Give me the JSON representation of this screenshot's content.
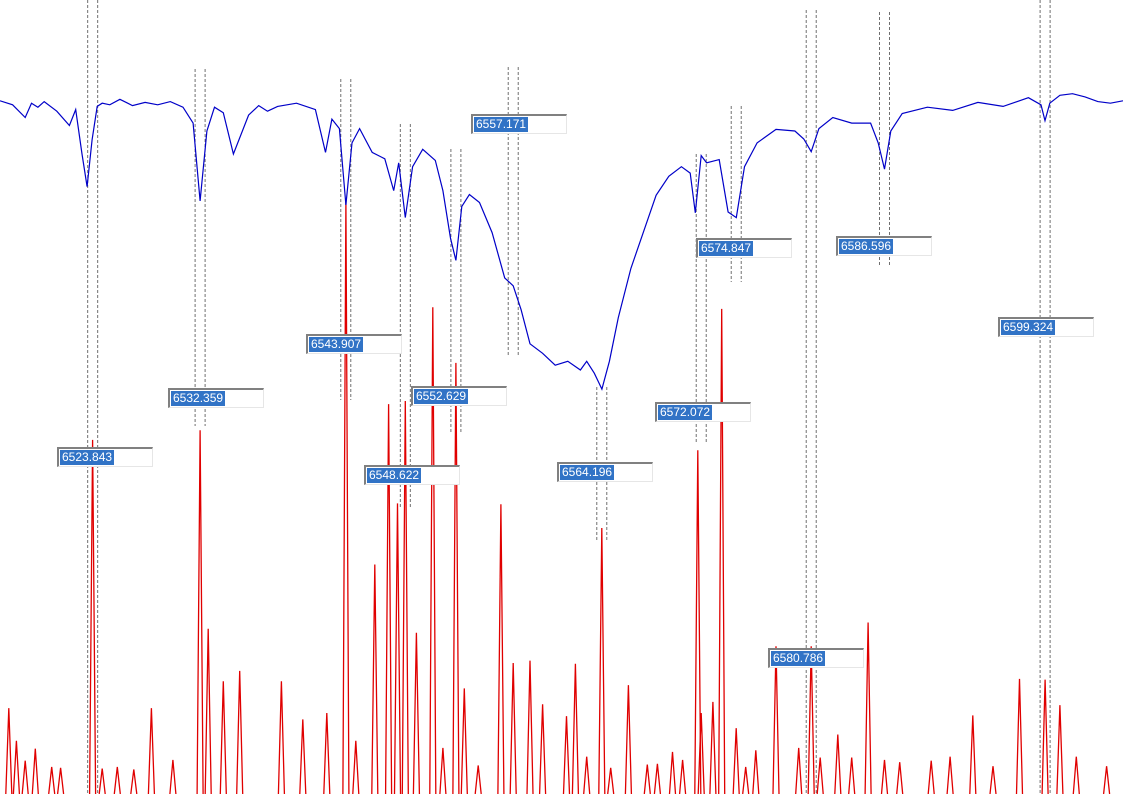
{
  "colors": {
    "observed_spectrum": "#0000c8",
    "synthetic_lines": "#e00000",
    "marker_lines": "#606060",
    "label_selection": "#3173c6"
  },
  "chart_data": {
    "type": "line",
    "title": "",
    "xlabel": "",
    "ylabel": "",
    "xlim": [
      6516.5,
      6605.5
    ],
    "ylim": [
      0,
      1
    ],
    "grid": false,
    "legend": "none",
    "series": [
      {
        "style": "line",
        "x": [
          6516.5,
          6517.5,
          6518.5,
          6519.0,
          6519.5,
          6520.0,
          6521.0,
          6522.0,
          6522.5,
          6523.0,
          6523.4,
          6523.8,
          6524.2,
          6524.6,
          6525.2,
          6526.0,
          6527.0,
          6528.0,
          6529.0,
          6530.0,
          6531.0,
          6531.8,
          6532.36,
          6532.9,
          6533.5,
          6534.2,
          6535.0,
          6536.2,
          6537.0,
          6537.7,
          6538.5,
          6540.0,
          6541.5,
          6542.3,
          6542.8,
          6543.4,
          6543.91,
          6544.4,
          6545.0,
          6546.0,
          6547.0,
          6547.7,
          6548.1,
          6548.62,
          6549.2,
          6550.0,
          6551.0,
          6551.6,
          6552.2,
          6552.63,
          6553.1,
          6553.7,
          6554.5,
          6555.5,
          6556.5,
          6557.17,
          6557.8,
          6558.5,
          6559.5,
          6560.5,
          6561.5,
          6562.5,
          6563.0,
          6563.6,
          6564.2,
          6564.8,
          6565.5,
          6566.5,
          6567.5,
          6568.5,
          6569.5,
          6570.5,
          6571.2,
          6571.6,
          6572.07,
          6572.5,
          6573.5,
          6574.2,
          6574.85,
          6575.5,
          6576.5,
          6578.0,
          6579.5,
          6580.2,
          6580.79,
          6581.4,
          6582.5,
          6584.0,
          6585.5,
          6586.1,
          6586.6,
          6587.1,
          6588.0,
          6590.0,
          6592.0,
          6594.0,
          6596.0,
          6598.0,
          6599.0,
          6599.32,
          6599.7,
          6600.5,
          6601.5,
          6602.5,
          6603.5,
          6604.5,
          6605.5
        ],
        "y": [
          0.873,
          0.868,
          0.852,
          0.87,
          0.865,
          0.872,
          0.86,
          0.842,
          0.862,
          0.806,
          0.765,
          0.824,
          0.866,
          0.87,
          0.868,
          0.875,
          0.867,
          0.871,
          0.868,
          0.872,
          0.865,
          0.845,
          0.747,
          0.835,
          0.865,
          0.858,
          0.806,
          0.855,
          0.867,
          0.86,
          0.866,
          0.87,
          0.862,
          0.808,
          0.85,
          0.838,
          0.742,
          0.82,
          0.838,
          0.808,
          0.8,
          0.76,
          0.795,
          0.726,
          0.79,
          0.812,
          0.798,
          0.76,
          0.7,
          0.672,
          0.74,
          0.755,
          0.745,
          0.707,
          0.65,
          0.64,
          0.61,
          0.567,
          0.555,
          0.54,
          0.545,
          0.534,
          0.545,
          0.53,
          0.51,
          0.545,
          0.6,
          0.662,
          0.708,
          0.754,
          0.778,
          0.79,
          0.782,
          0.732,
          0.804,
          0.795,
          0.799,
          0.733,
          0.726,
          0.79,
          0.82,
          0.837,
          0.835,
          0.825,
          0.809,
          0.838,
          0.852,
          0.845,
          0.845,
          0.82,
          0.787,
          0.835,
          0.857,
          0.865,
          0.861,
          0.871,
          0.866,
          0.877,
          0.868,
          0.848,
          0.87,
          0.88,
          0.882,
          0.878,
          0.872,
          0.87,
          0.873
        ]
      },
      {
        "style": "stick",
        "x": [
          6517.2,
          6517.8,
          6518.5,
          6519.3,
          6520.6,
          6521.3,
          6523.84,
          6524.6,
          6525.8,
          6527.1,
          6528.5,
          6530.2,
          6532.36,
          6533.0,
          6534.2,
          6535.5,
          6538.8,
          6540.5,
          6542.4,
          6543.91,
          6544.7,
          6546.2,
          6547.3,
          6548.0,
          6548.62,
          6549.5,
          6550.8,
          6551.6,
          6552.63,
          6553.3,
          6554.4,
          6556.2,
          6557.17,
          6558.5,
          6559.5,
          6561.4,
          6562.1,
          6563.0,
          6564.196,
          6564.9,
          6566.3,
          6567.8,
          6568.6,
          6569.8,
          6570.6,
          6571.8,
          6572.072,
          6573.0,
          6573.7,
          6574.847,
          6575.6,
          6576.4,
          6578.0,
          6579.8,
          6580.786,
          6581.5,
          6582.9,
          6584.0,
          6585.3,
          6586.596,
          6587.8,
          6590.3,
          6591.8,
          6593.6,
          6595.2,
          6597.3,
          6599.324,
          6600.5,
          6601.8,
          6604.2
        ],
        "y": [
          0.108,
          0.067,
          0.042,
          0.057,
          0.034,
          0.033,
          0.446,
          0.032,
          0.034,
          0.031,
          0.108,
          0.043,
          0.458,
          0.208,
          0.142,
          0.155,
          0.142,
          0.094,
          0.102,
          0.747,
          0.067,
          0.289,
          0.491,
          0.366,
          0.495,
          0.203,
          0.613,
          0.058,
          0.543,
          0.133,
          0.036,
          0.365,
          0.165,
          0.168,
          0.113,
          0.098,
          0.164,
          0.047,
          0.335,
          0.033,
          0.137,
          0.037,
          0.038,
          0.053,
          0.043,
          0.433,
          0.102,
          0.116,
          0.611,
          0.083,
          0.034,
          0.055,
          0.186,
          0.058,
          0.186,
          0.046,
          0.075,
          0.046,
          0.216,
          0.043,
          0.04,
          0.042,
          0.047,
          0.099,
          0.035,
          0.145,
          0.144,
          0.112,
          0.047,
          0.035
        ]
      }
    ],
    "annotations": [
      {
        "label": "6523.843",
        "x": 6523.843
      },
      {
        "label": "6532.359",
        "x": 6532.359
      },
      {
        "label": "6543.907",
        "x": 6543.907
      },
      {
        "label": "6548.622",
        "x": 6548.622
      },
      {
        "label": "6552.629",
        "x": 6552.629
      },
      {
        "label": "6557.171",
        "x": 6557.171
      },
      {
        "label": "6564.196",
        "x": 6564.196
      },
      {
        "label": "6572.072",
        "x": 6572.072
      },
      {
        "label": "6574.847",
        "x": 6574.847
      },
      {
        "label": "6580.786",
        "x": 6580.786
      },
      {
        "label": "6586.596",
        "x": 6586.596
      },
      {
        "label": "6599.324",
        "x": 6599.324
      }
    ]
  }
}
